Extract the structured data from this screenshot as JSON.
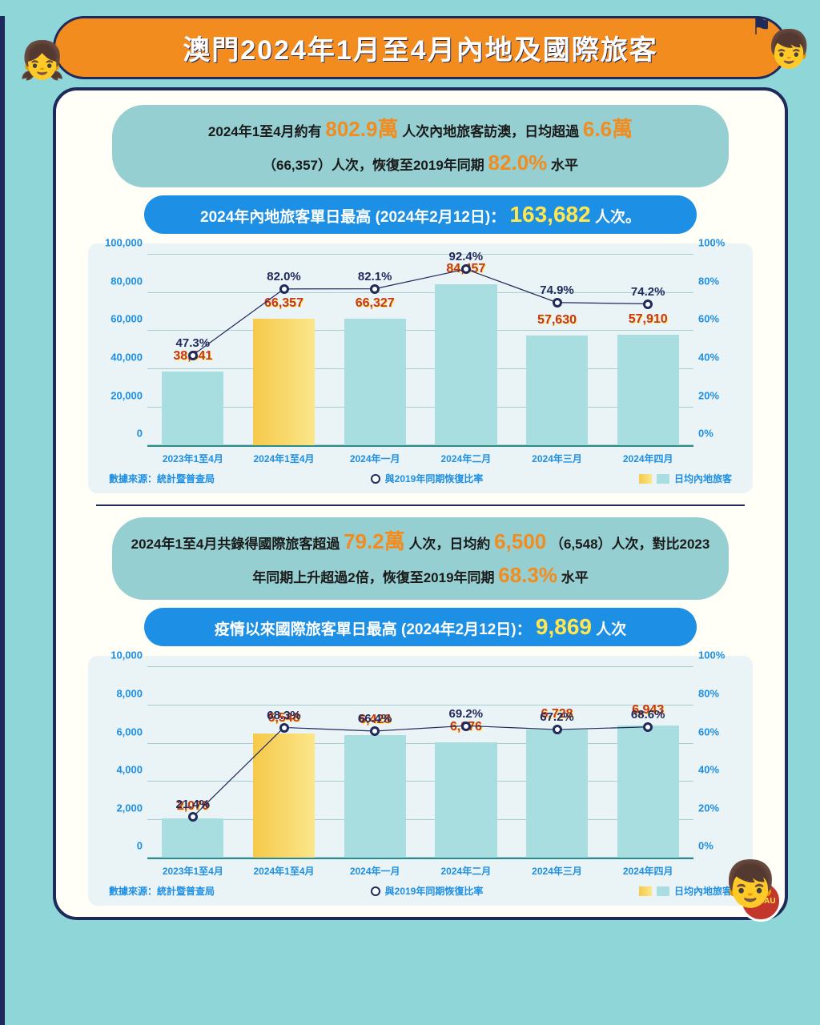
{
  "title": "澳門2024年1月至4月內地及國際旅客",
  "section1": {
    "summary_parts": {
      "t1": "2024年1至4月約有",
      "v1": "802.9萬",
      "t2": "人次內地旅客訪澳，日均超過",
      "v2": "6.6萬",
      "t3": "（66,357）人次，恢復至2019年同期",
      "v3": "82.0%",
      "t4": "水平"
    },
    "pill": {
      "text": "2024年內地旅客單日最高 (2024年2月12日)：",
      "value": "163,682",
      "suffix": "人次。"
    }
  },
  "chart1": {
    "type": "bar-line-combo",
    "left_axis": {
      "max": 100000,
      "step": 20000,
      "ticks": [
        "0",
        "20,000",
        "40,000",
        "60,000",
        "80,000",
        "100,000"
      ]
    },
    "right_axis": {
      "max": 100,
      "step": 20,
      "ticks": [
        "0%",
        "20%",
        "40%",
        "60%",
        "80%",
        "100%"
      ]
    },
    "categories": [
      "2023年1至4月",
      "2024年1至4月",
      "2024年一月",
      "2024年二月",
      "2024年三月",
      "2024年四月"
    ],
    "bar_values": [
      38541,
      66357,
      66327,
      84457,
      57630,
      57910
    ],
    "bar_labels": [
      "38,541",
      "66,357",
      "66,327",
      "84,457",
      "57,630",
      "57,910"
    ],
    "line_values": [
      47.3,
      82.0,
      82.1,
      92.4,
      74.9,
      74.2
    ],
    "line_labels": [
      "47.3%",
      "82.0%",
      "82.1%",
      "92.4%",
      "74.9%",
      "74.2%"
    ],
    "bar_highlight_index": 1,
    "bar_color": "#a9dee0",
    "bar_highlight_gradient": [
      "#f6c94a",
      "#fbe68a"
    ],
    "line_color": "#1f2a5c",
    "marker_fill": "#ffffff",
    "plot_bg": "#eaf3f5",
    "source": "數據來源：統計暨普查局",
    "legend_line": "與2019年同期恢復比率",
    "legend_bar": "日均內地旅客"
  },
  "section2": {
    "summary_parts": {
      "t1": "2024年1至4月共錄得國際旅客超過",
      "v1": "79.2萬",
      "t2": "人次，日均約",
      "v2": "6,500",
      "t3": "（6,548）人次，對比2023年同期上升超過2倍，恢復至2019年同期",
      "v3": "68.3%",
      "t4": "水平"
    },
    "pill": {
      "text": "疫情以來國際旅客單日最高 (2024年2月12日)：",
      "value": "9,869",
      "suffix": "人次"
    }
  },
  "chart2": {
    "type": "bar-line-combo",
    "left_axis": {
      "max": 10000,
      "step": 2000,
      "ticks": [
        "0",
        "2,000",
        "4,000",
        "6,000",
        "8,000",
        "10,000"
      ]
    },
    "right_axis": {
      "max": 100,
      "step": 20,
      "ticks": [
        "0%",
        "20%",
        "40%",
        "60%",
        "80%",
        "100%"
      ]
    },
    "categories": [
      "2023年1至4月",
      "2024年1至4月",
      "2024年一月",
      "2024年二月",
      "2024年三月",
      "2024年四月"
    ],
    "bar_values": [
      2070,
      6548,
      6428,
      6076,
      6728,
      6943
    ],
    "bar_labels": [
      "2,070",
      "6,548",
      "6,428",
      "6,076",
      "6,728",
      "6,943"
    ],
    "line_values": [
      21.4,
      68.3,
      66.4,
      69.2,
      67.2,
      68.6
    ],
    "line_labels": [
      "21.4%",
      "68.3%",
      "66.4%",
      "69.2%",
      "67.2%",
      "68.6%"
    ],
    "bar_highlight_index": 1,
    "bar_color": "#a9dee0",
    "bar_highlight_gradient": [
      "#f6c94a",
      "#fbe68a"
    ],
    "line_color": "#1f2a5c",
    "marker_fill": "#ffffff",
    "plot_bg": "#eaf3f5",
    "source": "數據來源：統計暨普查局",
    "legend_line": "與2019年同期恢復比率",
    "legend_bar": "日均內地旅客"
  },
  "logo_text": "MACAU"
}
